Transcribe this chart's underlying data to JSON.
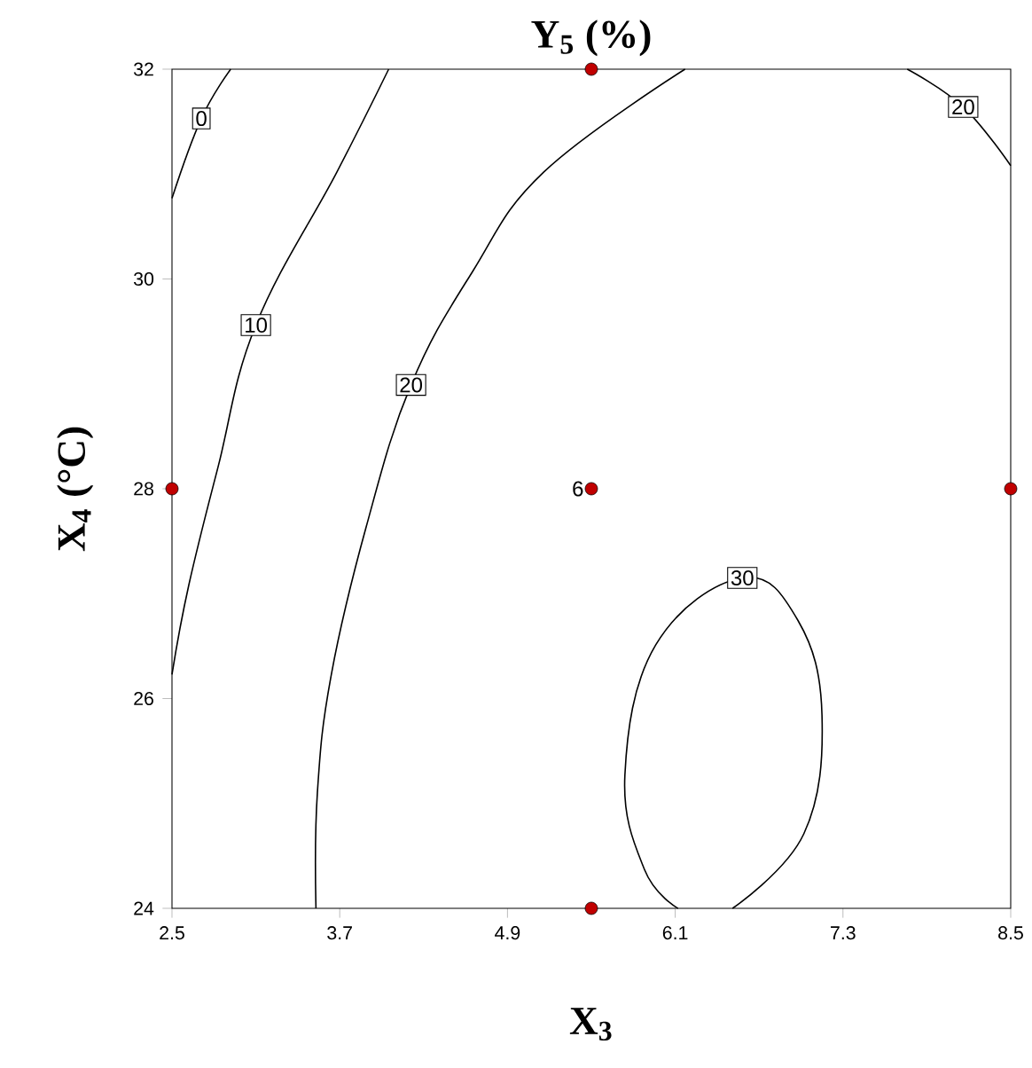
{
  "chart_data": {
    "type": "line",
    "title": "Y$_{5}$ (%)",
    "xlabel": "X$_{3}$",
    "ylabel": "X$_{4}$ (°C)",
    "xlim": [
      2.5,
      8.5
    ],
    "xticks": [
      2.5,
      3.7,
      4.9,
      6.1,
      7.3,
      8.5
    ],
    "ylim": [
      24,
      32
    ],
    "yticks": [
      24,
      26,
      28,
      30,
      32
    ],
    "series": [
      {
        "name": "0",
        "color": "#000000",
        "x": [
          2.92,
          2.71,
          2.5
        ],
        "values": [
          32,
          31.53,
          30.77
        ]
      },
      {
        "name": "10",
        "color": "#000000",
        "x": [
          4.05,
          3.68,
          3.1,
          2.83,
          2.62,
          2.5
        ],
        "values": [
          32,
          31.02,
          29.56,
          28.21,
          27.08,
          26.23
        ]
      },
      {
        "name": "20",
        "color": "#000000",
        "x": [
          6.17,
          5.16,
          4.65,
          4.21,
          3.89,
          3.64,
          3.54,
          3.53,
          null,
          7.76,
          8.16,
          8.5
        ],
        "values": [
          32,
          31.02,
          30.07,
          28.99,
          27.64,
          26.23,
          25.1,
          24,
          null,
          32,
          31.64,
          31.08
        ]
      },
      {
        "name": "30",
        "color": "#000000",
        "x": [
          6.51,
          7.02,
          7.15,
          6.98,
          6.58,
          5.96,
          5.74,
          5.88,
          6.12
        ],
        "values": [
          24,
          24.71,
          25.84,
          26.74,
          27.15,
          26.51,
          25.27,
          24.37,
          24
        ]
      },
      {
        "type": "scatter",
        "marker": "circle",
        "color": "#c00000",
        "x": [
          2.5,
          5.5,
          5.5,
          8.5,
          5.5
        ],
        "values": [
          28,
          32,
          28,
          28,
          24
        ]
      }
    ],
    "annotations": [
      {
        "text": "6",
        "x": 5.5,
        "y": 28
      }
    ]
  }
}
